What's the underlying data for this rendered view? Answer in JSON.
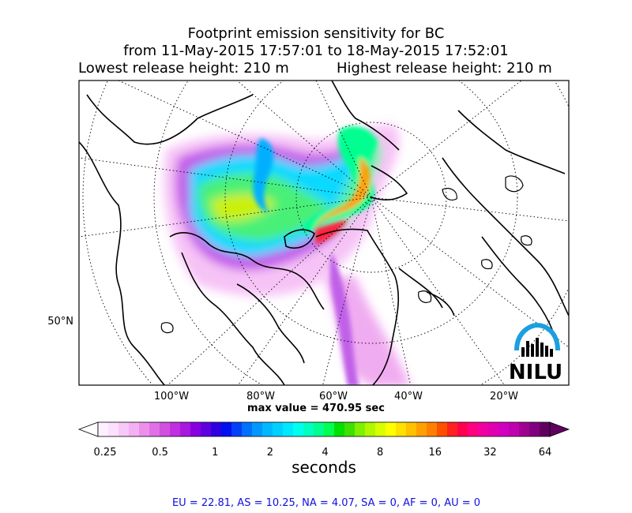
{
  "title": {
    "line1": "Footprint emission sensitivity for BC",
    "line2": "from 11-May-2015 17:57:01 to 18-May-2015 17:52:01",
    "lowest": "Lowest release height: 210 m",
    "highest": "Highest release height: 210 m"
  },
  "logo": {
    "text": "NILU",
    "arc_color": "#1aa0e0"
  },
  "max_value_label": "max value = 470.95 sec",
  "regions_line": "EU = 22.81,  AS = 10.25,  NA = 4.07,  SA = 0,  AF = 0,  AU = 0",
  "chart_data": {
    "type": "heatmap",
    "projection": "north-polar-stereographic",
    "x_ticks": [
      "100°W",
      "80°W",
      "60°W",
      "40°W",
      "20°W"
    ],
    "y_ticks": [
      "50°N"
    ],
    "max_value": 470.95,
    "max_value_unit": "sec",
    "colorbar": {
      "unit": "seconds",
      "tick_labels": [
        "0.25",
        "0.5",
        "1",
        "2",
        "4",
        "8",
        "16",
        "32",
        "64"
      ],
      "min": 0.25,
      "max": 64,
      "scale": "log",
      "extend": "both",
      "colors": [
        "#fff0ff",
        "#fde0fd",
        "#f8c8f8",
        "#f3b0f3",
        "#ec90ec",
        "#e070e8",
        "#d050e0",
        "#c030e0",
        "#a818e0",
        "#8800e0",
        "#6000e0",
        "#3000e0",
        "#0010f0",
        "#0040f8",
        "#0070ff",
        "#0098ff",
        "#00b8ff",
        "#00d0ff",
        "#00e8ff",
        "#00ffee",
        "#00ffc0",
        "#00ff90",
        "#00ff50",
        "#00e000",
        "#40e000",
        "#80f000",
        "#b0f800",
        "#d8ff00",
        "#ffff00",
        "#ffe000",
        "#ffc000",
        "#ffa000",
        "#ff8000",
        "#ff5000",
        "#ff2020",
        "#ff0050",
        "#ff0080",
        "#f000a0",
        "#e000b0",
        "#d000c0",
        "#c000b0",
        "#a00090",
        "#800080",
        "#600060"
      ]
    },
    "regions": {
      "EU": 22.81,
      "AS": 10.25,
      "NA": 4.07,
      "SA": 0,
      "AF": 0,
      "AU": 0
    }
  }
}
